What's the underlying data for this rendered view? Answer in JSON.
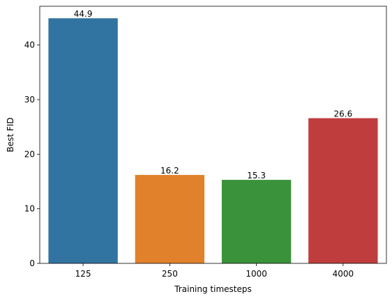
{
  "chart_data": {
    "type": "bar",
    "title": "",
    "xlabel": "Training timesteps",
    "ylabel": "Best FID",
    "categories": [
      "125",
      "250",
      "1000",
      "4000"
    ],
    "values": [
      44.9,
      16.2,
      15.3,
      26.6
    ],
    "value_labels": [
      "44.9",
      "16.2",
      "15.3",
      "26.6"
    ],
    "colors": [
      "#3274a1",
      "#e1812c",
      "#3a923a",
      "#c03d3e"
    ],
    "ylim": [
      0,
      47.1
    ],
    "yticks": [
      0,
      10,
      20,
      30,
      40
    ],
    "grid": false,
    "legend": "none"
  }
}
